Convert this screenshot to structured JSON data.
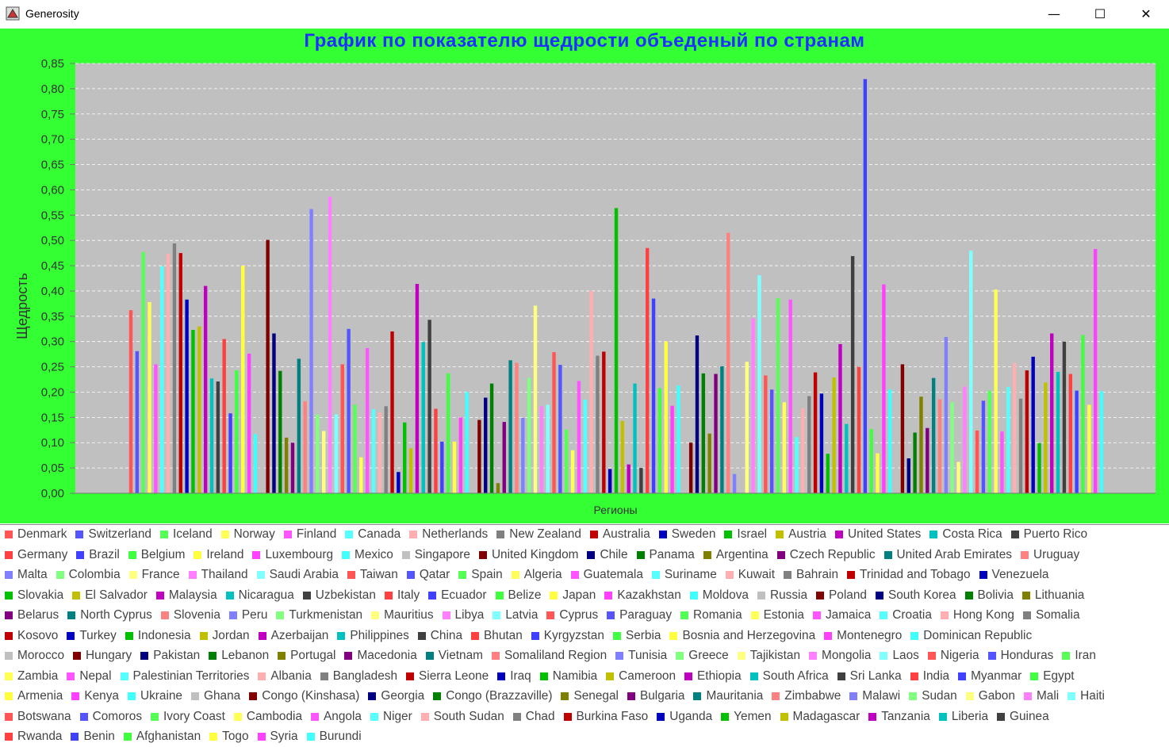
{
  "window": {
    "title": "Generosity",
    "minimize": "—",
    "maximize": "☐",
    "close": "✕"
  },
  "chart_data": {
    "type": "bar",
    "title": "График по показателю щедрости объеденый по странам",
    "xlabel": "Регионы",
    "ylabel": "Щедрость",
    "ylim": [
      0,
      0.85
    ],
    "yticks": [
      "0,00",
      "0,05",
      "0,10",
      "0,15",
      "0,20",
      "0,25",
      "0,30",
      "0,35",
      "0,40",
      "0,45",
      "0,50",
      "0,55",
      "0,60",
      "0,65",
      "0,70",
      "0,75",
      "0,80",
      "0,85"
    ],
    "grid": true,
    "palette": [
      "#FF5555",
      "#5555FF",
      "#55FF55",
      "#FFFF55",
      "#FF55FF",
      "#55FFFF",
      "#FFAFAF",
      "#808080",
      "#C00000",
      "#0000C0",
      "#00C000",
      "#C0C000",
      "#C000C0",
      "#00C0C0",
      "#404040",
      "#FF4040",
      "#4040FF",
      "#40FF40",
      "#FFFF40",
      "#FF40FF",
      "#40FFFF",
      "#C0C0C0",
      "#800000",
      "#000080",
      "#008000",
      "#808000",
      "#800080",
      "#008080",
      "#FF8080",
      "#8080FF",
      "#80FF80",
      "#FFFF80",
      "#FF80FF",
      "#80FFFF"
    ],
    "series": [
      {
        "name": "Denmark",
        "value": 0.362
      },
      {
        "name": "Switzerland",
        "value": 0.281
      },
      {
        "name": "Iceland",
        "value": 0.477
      },
      {
        "name": "Norway",
        "value": 0.378
      },
      {
        "name": "Finland",
        "value": 0.255
      },
      {
        "name": "Canada",
        "value": 0.449
      },
      {
        "name": "Netherlands",
        "value": 0.474
      },
      {
        "name": "New Zealand",
        "value": 0.494
      },
      {
        "name": "Australia",
        "value": 0.475
      },
      {
        "name": "Sweden",
        "value": 0.383
      },
      {
        "name": "Israel",
        "value": 0.323
      },
      {
        "name": "Austria",
        "value": 0.33
      },
      {
        "name": "United States",
        "value": 0.41
      },
      {
        "name": "Costa Rica",
        "value": 0.227
      },
      {
        "name": "Puerto Rico",
        "value": 0.221
      },
      {
        "name": "Germany",
        "value": 0.305
      },
      {
        "name": "Brazil",
        "value": 0.158
      },
      {
        "name": "Belgium",
        "value": 0.243
      },
      {
        "name": "Ireland",
        "value": 0.45
      },
      {
        "name": "Luxembourg",
        "value": 0.276
      },
      {
        "name": "Mexico",
        "value": 0.117
      },
      {
        "name": "Singapore",
        "value": 0.327
      },
      {
        "name": "United Kingdom",
        "value": 0.501
      },
      {
        "name": "Chile",
        "value": 0.316
      },
      {
        "name": "Panama",
        "value": 0.242
      },
      {
        "name": "Argentina",
        "value": 0.11
      },
      {
        "name": "Czech Republic",
        "value": 0.1
      },
      {
        "name": "United Arab Emirates",
        "value": 0.266
      },
      {
        "name": "Uruguay",
        "value": 0.182
      },
      {
        "name": "Malta",
        "value": 0.562
      },
      {
        "name": "Colombia",
        "value": 0.156
      },
      {
        "name": "France",
        "value": 0.123
      },
      {
        "name": "Thailand",
        "value": 0.587
      },
      {
        "name": "Saudi Arabia",
        "value": 0.156
      },
      {
        "name": "Taiwan",
        "value": 0.255
      },
      {
        "name": "Qatar",
        "value": 0.325
      },
      {
        "name": "Spain",
        "value": 0.175
      },
      {
        "name": "Algeria",
        "value": 0.071
      },
      {
        "name": "Guatemala",
        "value": 0.287
      },
      {
        "name": "Suriname",
        "value": 0.166
      },
      {
        "name": "Kuwait",
        "value": 0.16
      },
      {
        "name": "Bahrain",
        "value": 0.172
      },
      {
        "name": "Trinidad and Tobago",
        "value": 0.32
      },
      {
        "name": "Venezuela",
        "value": 0.042
      },
      {
        "name": "Slovakia",
        "value": 0.14
      },
      {
        "name": "El Salvador",
        "value": 0.089
      },
      {
        "name": "Malaysia",
        "value": 0.414
      },
      {
        "name": "Nicaragua",
        "value": 0.299
      },
      {
        "name": "Uzbekistan",
        "value": 0.343
      },
      {
        "name": "Italy",
        "value": 0.167
      },
      {
        "name": "Ecuador",
        "value": 0.102
      },
      {
        "name": "Belize",
        "value": 0.237
      },
      {
        "name": "Japan",
        "value": 0.102
      },
      {
        "name": "Kazakhstan",
        "value": 0.15
      },
      {
        "name": "Moldova",
        "value": 0.2
      },
      {
        "name": "Russia",
        "value": 0.028
      },
      {
        "name": "Poland",
        "value": 0.145
      },
      {
        "name": "South Korea",
        "value": 0.189
      },
      {
        "name": "Bolivia",
        "value": 0.217
      },
      {
        "name": "Lithuania",
        "value": 0.02
      },
      {
        "name": "Belarus",
        "value": 0.141
      },
      {
        "name": "North Cyprus",
        "value": 0.263
      },
      {
        "name": "Slovenia",
        "value": 0.258
      },
      {
        "name": "Peru",
        "value": 0.149
      },
      {
        "name": "Turkmenistan",
        "value": 0.228
      },
      {
        "name": "Mauritius",
        "value": 0.371
      },
      {
        "name": "Libya",
        "value": 0.172
      },
      {
        "name": "Latvia",
        "value": 0.175
      },
      {
        "name": "Cyprus",
        "value": 0.279
      },
      {
        "name": "Paraguay",
        "value": 0.254
      },
      {
        "name": "Romania",
        "value": 0.126
      },
      {
        "name": "Estonia",
        "value": 0.085
      },
      {
        "name": "Jamaica",
        "value": 0.222
      },
      {
        "name": "Croatia",
        "value": 0.185
      },
      {
        "name": "Hong Kong",
        "value": 0.4
      },
      {
        "name": "Somalia",
        "value": 0.272
      },
      {
        "name": "Kosovo",
        "value": 0.28
      },
      {
        "name": "Turkey",
        "value": 0.048
      },
      {
        "name": "Indonesia",
        "value": 0.564
      },
      {
        "name": "Jordan",
        "value": 0.143
      },
      {
        "name": "Azerbaijan",
        "value": 0.057
      },
      {
        "name": "Philippines",
        "value": 0.217
      },
      {
        "name": "China",
        "value": 0.05
      },
      {
        "name": "Bhutan",
        "value": 0.485
      },
      {
        "name": "Kyrgyzstan",
        "value": 0.385
      },
      {
        "name": "Serbia",
        "value": 0.208
      },
      {
        "name": "Bosnia and Herzegovina",
        "value": 0.3
      },
      {
        "name": "Montenegro",
        "value": 0.173
      },
      {
        "name": "Dominican Republic",
        "value": 0.213
      },
      {
        "name": "Morocco",
        "value": 0.04
      },
      {
        "name": "Hungary",
        "value": 0.1
      },
      {
        "name": "Pakistan",
        "value": 0.312
      },
      {
        "name": "Lebanon",
        "value": 0.237
      },
      {
        "name": "Portugal",
        "value": 0.118
      },
      {
        "name": "Macedonia",
        "value": 0.236
      },
      {
        "name": "Vietnam",
        "value": 0.251
      },
      {
        "name": "Somaliland Region",
        "value": 0.515
      },
      {
        "name": "Tunisia",
        "value": 0.038
      },
      {
        "name": "Greece",
        "value": 0.0
      },
      {
        "name": "Tajikistan",
        "value": 0.26
      },
      {
        "name": "Mongolia",
        "value": 0.346
      },
      {
        "name": "Laos",
        "value": 0.431
      },
      {
        "name": "Nigeria",
        "value": 0.233
      },
      {
        "name": "Honduras",
        "value": 0.205
      },
      {
        "name": "Iran",
        "value": 0.386
      },
      {
        "name": "Zambia",
        "value": 0.18
      },
      {
        "name": "Nepal",
        "value": 0.383
      },
      {
        "name": "Palestinian Territories",
        "value": 0.111
      },
      {
        "name": "Albania",
        "value": 0.168
      },
      {
        "name": "Bangladesh",
        "value": 0.192
      },
      {
        "name": "Sierra Leone",
        "value": 0.239
      },
      {
        "name": "Iraq",
        "value": 0.197
      },
      {
        "name": "Namibia",
        "value": 0.078
      },
      {
        "name": "Cameroon",
        "value": 0.229
      },
      {
        "name": "Ethiopia",
        "value": 0.295
      },
      {
        "name": "South Africa",
        "value": 0.137
      },
      {
        "name": "Sri Lanka",
        "value": 0.469
      },
      {
        "name": "India",
        "value": 0.25
      },
      {
        "name": "Myanmar",
        "value": 0.819
      },
      {
        "name": "Egypt",
        "value": 0.127
      },
      {
        "name": "Armenia",
        "value": 0.079
      },
      {
        "name": "Kenya",
        "value": 0.413
      },
      {
        "name": "Ukraine",
        "value": 0.205
      },
      {
        "name": "Ghana",
        "value": 0.211
      },
      {
        "name": "Congo (Kinshasa)",
        "value": 0.255
      },
      {
        "name": "Georgia",
        "value": 0.069
      },
      {
        "name": "Congo (Brazzaville)",
        "value": 0.12
      },
      {
        "name": "Senegal",
        "value": 0.191
      },
      {
        "name": "Bulgaria",
        "value": 0.129
      },
      {
        "name": "Mauritania",
        "value": 0.228
      },
      {
        "name": "Zimbabwe",
        "value": 0.186
      },
      {
        "name": "Malawi",
        "value": 0.309
      },
      {
        "name": "Sudan",
        "value": 0.18
      },
      {
        "name": "Gabon",
        "value": 0.062
      },
      {
        "name": "Mali",
        "value": 0.211
      },
      {
        "name": "Haiti",
        "value": 0.48
      },
      {
        "name": "Botswana",
        "value": 0.124
      },
      {
        "name": "Comoros",
        "value": 0.183
      },
      {
        "name": "Ivory Coast",
        "value": 0.203
      },
      {
        "name": "Cambodia",
        "value": 0.403
      },
      {
        "name": "Angola",
        "value": 0.122
      },
      {
        "name": "Niger",
        "value": 0.21
      },
      {
        "name": "South Sudan",
        "value": 0.258
      },
      {
        "name": "Chad",
        "value": 0.187
      },
      {
        "name": "Burkina Faso",
        "value": 0.243
      },
      {
        "name": "Uganda",
        "value": 0.27
      },
      {
        "name": "Yemen",
        "value": 0.099
      },
      {
        "name": "Madagascar",
        "value": 0.219
      },
      {
        "name": "Tanzania",
        "value": 0.316
      },
      {
        "name": "Liberia",
        "value": 0.24
      },
      {
        "name": "Guinea",
        "value": 0.3
      },
      {
        "name": "Rwanda",
        "value": 0.236
      },
      {
        "name": "Benin",
        "value": 0.203
      },
      {
        "name": "Afghanistan",
        "value": 0.313
      },
      {
        "name": "Togo",
        "value": 0.175
      },
      {
        "name": "Syria",
        "value": 0.483
      },
      {
        "name": "Burundi",
        "value": 0.202
      }
    ],
    "legend_rows": [
      15,
      14,
      15,
      16,
      16,
      13,
      16,
      15,
      16,
      15,
      6
    ]
  }
}
